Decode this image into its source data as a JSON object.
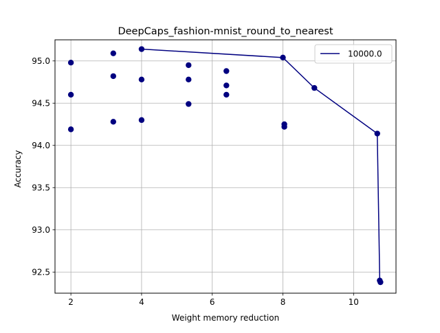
{
  "chart_data": {
    "type": "scatter",
    "title": "DeepCaps_fashion-mnist_round_to_nearest",
    "xlabel": "Weight memory reduction",
    "ylabel": "Accuracy",
    "xlim": [
      1.55,
      11.2
    ],
    "ylim": [
      92.25,
      95.25
    ],
    "xticks": [
      2,
      4,
      6,
      8,
      10
    ],
    "yticks": [
      92.5,
      93.0,
      93.5,
      94.0,
      94.5,
      95.0
    ],
    "ytick_labels": [
      "92.5",
      "93.0",
      "93.5",
      "94.0",
      "94.5",
      "95.0"
    ],
    "grid": true,
    "legend_position": "top-right",
    "colors": {
      "series": "#000080"
    },
    "points": [
      {
        "x": 2.0,
        "y": 94.98
      },
      {
        "x": 2.0,
        "y": 94.6
      },
      {
        "x": 2.0,
        "y": 94.19
      },
      {
        "x": 3.2,
        "y": 95.09
      },
      {
        "x": 3.2,
        "y": 94.82
      },
      {
        "x": 3.2,
        "y": 94.28
      },
      {
        "x": 4.0,
        "y": 95.14
      },
      {
        "x": 4.0,
        "y": 94.78
      },
      {
        "x": 4.0,
        "y": 94.3
      },
      {
        "x": 5.33,
        "y": 94.95
      },
      {
        "x": 5.33,
        "y": 94.78
      },
      {
        "x": 5.33,
        "y": 94.49
      },
      {
        "x": 6.4,
        "y": 94.88
      },
      {
        "x": 6.4,
        "y": 94.71
      },
      {
        "x": 6.4,
        "y": 94.6
      },
      {
        "x": 8.0,
        "y": 95.04
      },
      {
        "x": 8.04,
        "y": 94.25
      },
      {
        "x": 8.04,
        "y": 94.22
      },
      {
        "x": 8.89,
        "y": 94.68
      },
      {
        "x": 10.67,
        "y": 94.14
      },
      {
        "x": 10.74,
        "y": 92.4
      },
      {
        "x": 10.76,
        "y": 92.38
      }
    ],
    "series": [
      {
        "name": "10000.0",
        "x": [
          4.0,
          8.0,
          8.89,
          10.67,
          10.74
        ],
        "y": [
          95.14,
          95.04,
          94.68,
          94.14,
          92.4
        ]
      }
    ]
  }
}
